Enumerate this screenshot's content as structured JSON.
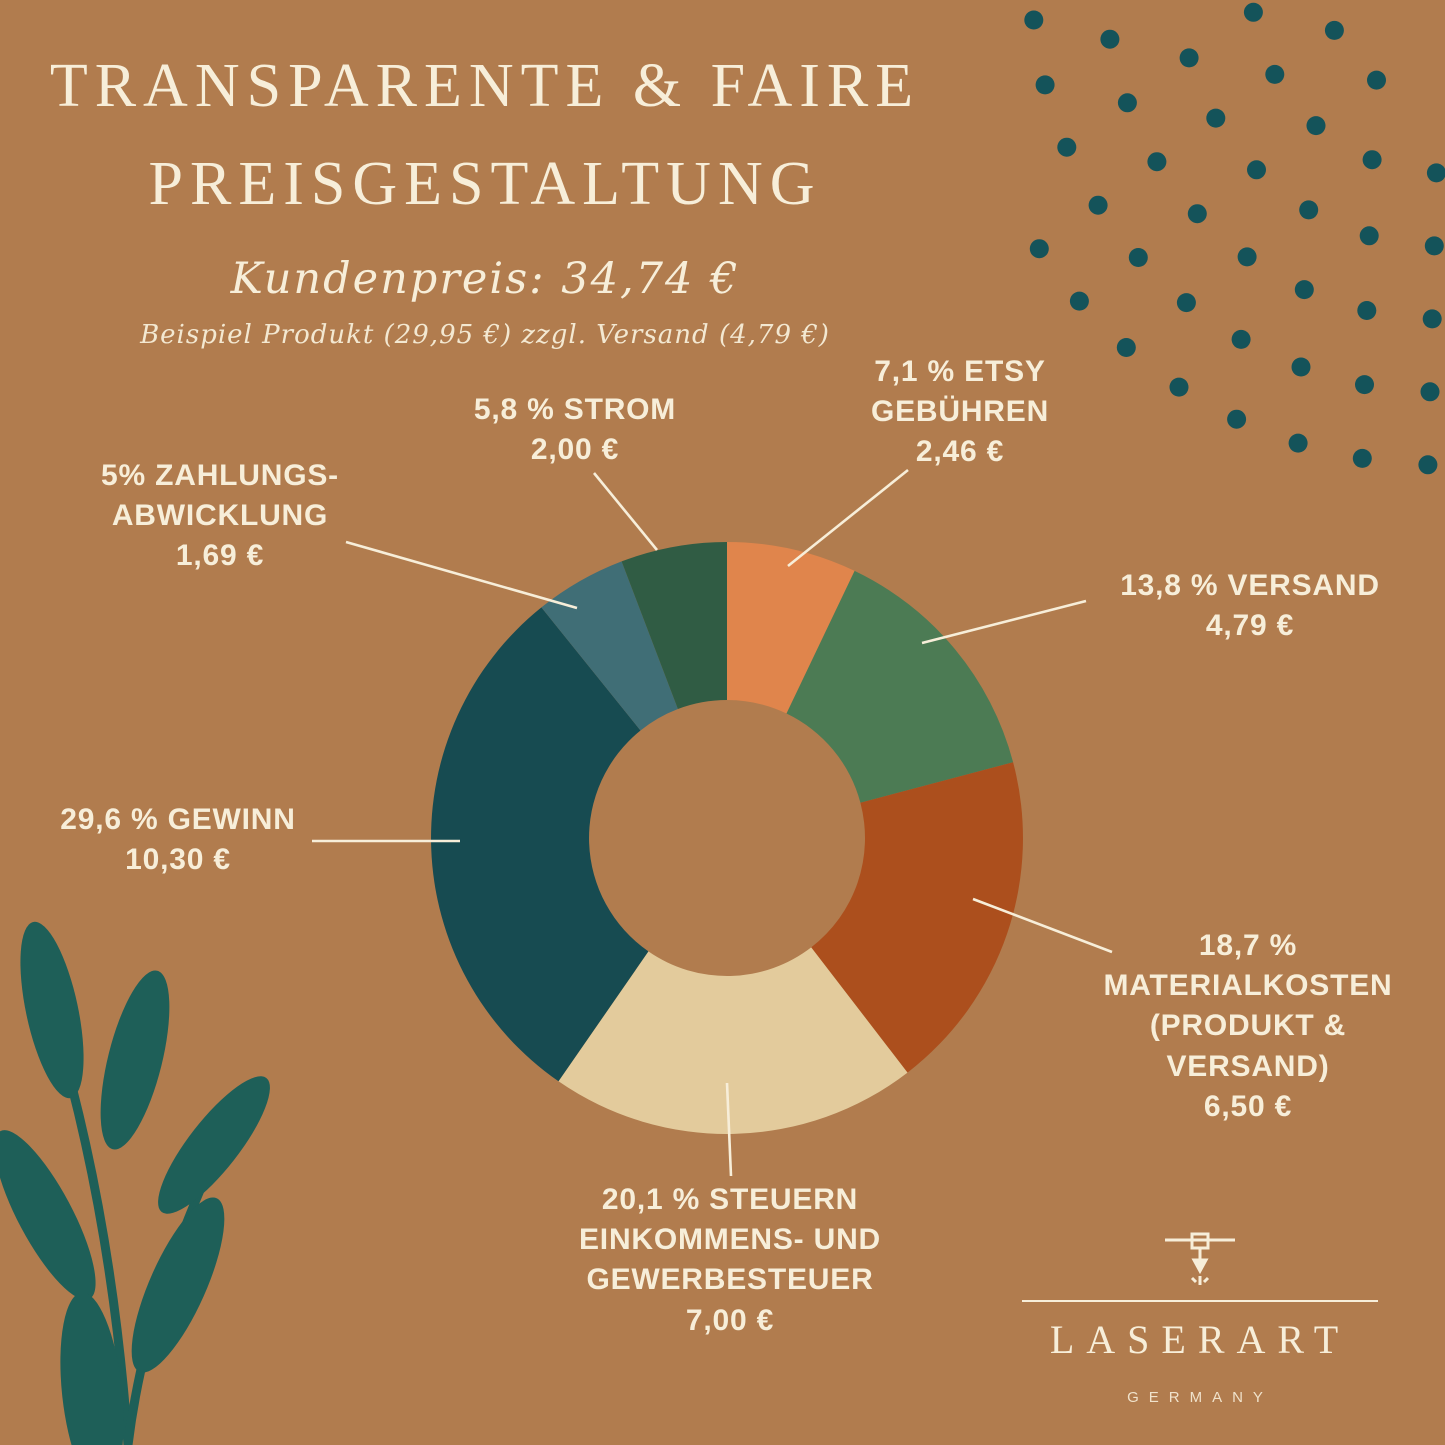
{
  "theme": {
    "bg": "#B17C4E",
    "cream": "#F7EED9",
    "dot": "#14535A",
    "plant": "#1E5F58"
  },
  "header": {
    "title_line1": "TRANSPARENTE & FAIRE",
    "title_line2": "PREISGESTALTUNG",
    "price_line": "Kundenpreis:  34,74 €",
    "note_line": "Beispiel Produkt (29,95 €) zzgl. Versand (4,79 €)"
  },
  "chart_data": {
    "type": "pie",
    "donut": true,
    "title": "Transparente & Faire Preisgestaltung",
    "total_label": "Kundenpreis: 34,74 €",
    "note": "Beispiel Produkt (29,95 €) zzgl. Versand (4,79 €)",
    "currency": "EUR",
    "slices": [
      {
        "label": "ETSY GEBÜHREN",
        "percent": 7.1,
        "value": 2.46,
        "value_label": "2,46 €",
        "color": "#E0854C",
        "callout_lines": [
          "7,1 % ETSY",
          "GEBÜHREN",
          "2,46 €"
        ]
      },
      {
        "label": "VERSAND",
        "percent": 13.8,
        "value": 4.79,
        "value_label": "4,79 €",
        "color": "#4C7B54",
        "callout_lines": [
          "13,8 % VERSAND",
          "4,79 €"
        ]
      },
      {
        "label": "MATERIALKOSTEN (PRODUKT & VERSAND)",
        "percent": 18.7,
        "value": 6.5,
        "value_label": "6,50 €",
        "color": "#AC4F1D",
        "callout_lines": [
          "18,7 %",
          "MATERIALKOSTEN",
          "(PRODUKT &",
          "VERSAND)",
          "6,50 €"
        ]
      },
      {
        "label": "STEUERN EINKOMMENS- UND GEWERBESTEUER",
        "percent": 20.1,
        "value": 7.0,
        "value_label": "7,00 €",
        "color": "#E3CB9C",
        "callout_lines": [
          "20,1 % STEUERN",
          "EINKOMMENS- UND",
          "GEWERBESTEUER",
          "7,00 €"
        ]
      },
      {
        "label": "GEWINN",
        "percent": 29.6,
        "value": 10.3,
        "value_label": "10,30 €",
        "color": "#174B51",
        "callout_lines": [
          "29,6 % GEWINN",
          "10,30 €"
        ]
      },
      {
        "label": "ZAHLUNGSABWICKLUNG",
        "percent": 5.0,
        "value": 1.69,
        "value_label": "1,69 €",
        "color": "#406E76",
        "callout_lines": [
          "5% ZAHLUNGS-",
          "ABWICKLUNG",
          "1,69 €"
        ]
      },
      {
        "label": "STROM",
        "percent": 5.8,
        "value": 2.0,
        "value_label": "2,00 €",
        "color": "#305C44",
        "callout_lines": [
          "5,8 % STROM",
          "2,00 €"
        ]
      }
    ]
  },
  "logo": {
    "brand": "LASERART",
    "country": "GERMANY"
  }
}
